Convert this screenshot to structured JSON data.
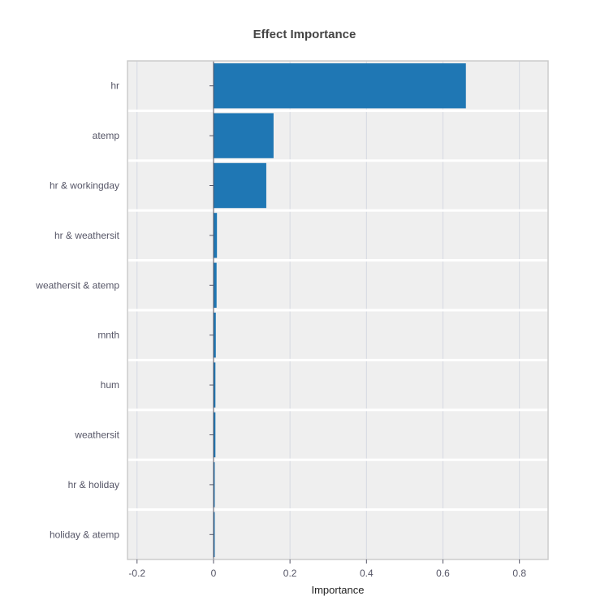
{
  "chart_data": {
    "type": "bar",
    "orientation": "horizontal",
    "title": "Effect Importance",
    "xlabel": "Importance",
    "ylabel": "",
    "categories": [
      "hr",
      "atemp",
      "hr & workingday",
      "hr & weathersit",
      "weathersit & atemp",
      "mnth",
      "hum",
      "weathersit",
      "hr & holiday",
      "holiday & atemp"
    ],
    "values": [
      0.66,
      0.157,
      0.138,
      0.009,
      0.008,
      0.006,
      0.005,
      0.005,
      0.003,
      0.002
    ],
    "xlim": [
      -0.225,
      0.875
    ],
    "xticks": [
      -0.2,
      0,
      0.2,
      0.4,
      0.6,
      0.8
    ],
    "xtick_labels": [
      "-0.2",
      "0",
      "0.2",
      "0.4",
      "0.6",
      "0.8"
    ],
    "grid": true,
    "bar_color": "#1f77b4",
    "background_color": "#efefef"
  }
}
